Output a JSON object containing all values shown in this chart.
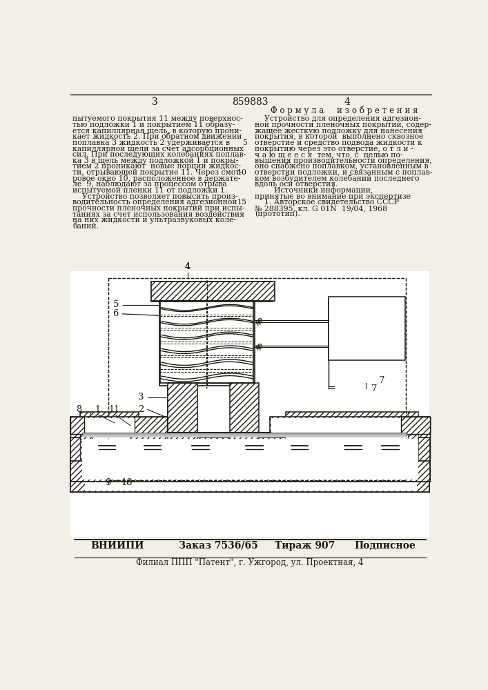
{
  "bg_color": "#f2efe8",
  "text_color": "#1a1810",
  "patent_number": "859883",
  "page_left": "3",
  "page_right": "4",
  "formula_title": "Ф о р м у л а     и з о б р е т е н и я",
  "left_col": [
    "пытуемого покрытия 11 между поверхнос-",
    "тью подложки 1 и покрытием 11 образу-",
    "ется капиллярная щель, в которую прони-",
    "кает жидкость 2. При обратном движении",
    "поплавка 3 жидкость 2 удерживается в",
    "капиллярной щели за счет адсорбционных",
    "сил. При последующих колебаниях поплав-",
    "ка 3 в щель между подложкой 1 и покры-",
    "тием 2 проникают  новые порции жидкос-",
    "ти, отрывающей покрытие 11. Через смот-",
    "ровое окно 10, расположенное в держате-",
    "ле  9, наблюдают за процессом отрыва",
    "испытуемой пленки 11 от подложки 1.",
    "    Устройство позволяет повысить произ-",
    "водительность определения адгезионной",
    "прочности пленочных покрытий при испы-",
    "таниях за счет использования воздействия",
    "на них жидкости и ультразвуковых коле-",
    "баний."
  ],
  "right_col_formula": [
    "    Устройство для определения адгезион-",
    "ной прочности пленочных покрытий, содер-",
    "жащее жесткую подложку для нанесения",
    "покрытия, в которой  выполнено сквозное",
    "отверстие и средство подвода жидкости к",
    "покрытию через это отверстие, о т л и -",
    "ч а ю щ е е с я  тем, что, с  целью по-",
    "вышения производительности определения,",
    "оно снабжено поплавком, установленным в",
    "отверстии подложки, и связанным с поплав-",
    "ком возбудителем колебаний последнего",
    "вдоль оси отверстия.",
    "        Источники информации,",
    "принятые во внимание при экспертизе",
    "    1. Авторское свидетельство СССР",
    "№ 288395, кл. G 01N  19/04, 1968",
    "(прототип)."
  ],
  "line_numbers": [
    [
      5,
      4
    ],
    [
      10,
      9
    ],
    [
      15,
      14
    ]
  ],
  "footer_vnipi": "ВНИИПИ",
  "footer_order": "Заказ 7536/65",
  "footer_print": "Тираж 907",
  "footer_sub": "Подписное",
  "footer_branch": "Филиал ППП \"Патент\", г. Ужгород, ул. Проектная, 4"
}
